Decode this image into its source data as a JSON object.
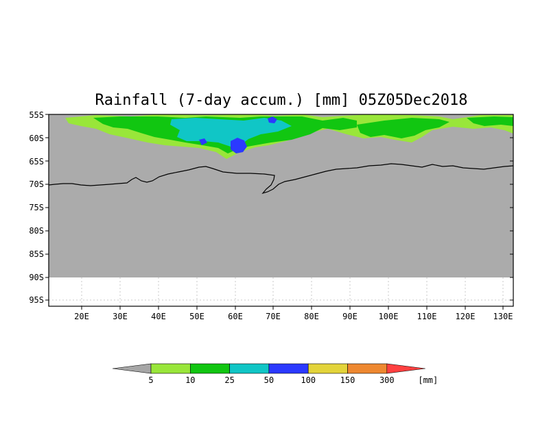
{
  "title": "Rainfall (7-day accum.) [mm] 05Z05Dec2018",
  "map": {
    "lat_labels": [
      "55S",
      "60S",
      "65S",
      "70S",
      "75S",
      "80S",
      "85S",
      "90S",
      "95S"
    ],
    "lon_labels": [
      "20E",
      "30E",
      "40E",
      "50E",
      "60E",
      "70E",
      "80E",
      "90E",
      "100E",
      "110E",
      "120E",
      "130E"
    ],
    "lat_range": [
      -95.5,
      -55
    ],
    "lon_range": [
      12,
      132
    ],
    "data_bottom_lat": -90,
    "colors": {
      "below_5": "#a8a8a8",
      "land_ocean_gray": "#ababab",
      "coastline": "#000000"
    }
  },
  "colorbar": {
    "unit_label": "[mm]",
    "ticks": [
      "5",
      "10",
      "25",
      "50",
      "100",
      "150",
      "300"
    ],
    "colors": [
      "#a6a6a6",
      "#99e63a",
      "#11c611",
      "#10c6c6",
      "#2b39ff",
      "#e3d43a",
      "#ee8830",
      "#ff4040"
    ]
  }
}
